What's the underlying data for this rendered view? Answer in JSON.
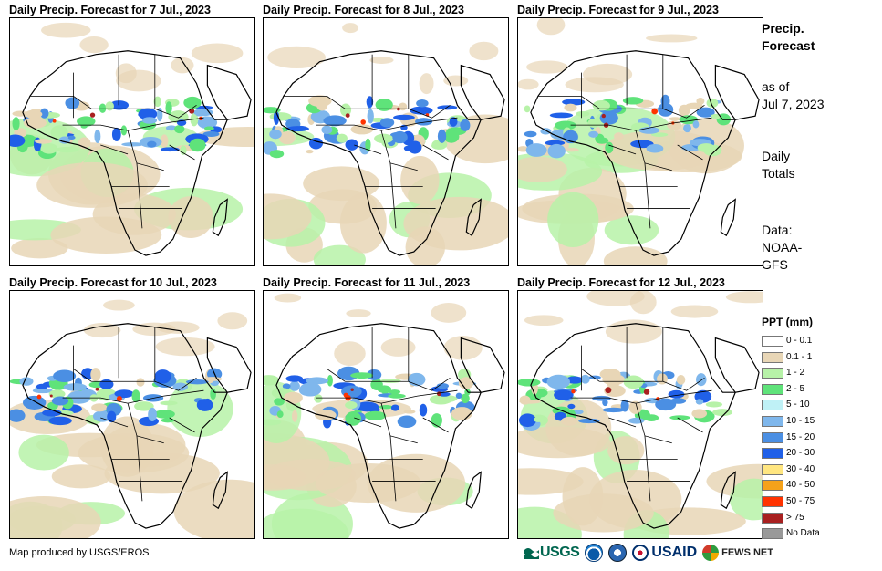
{
  "panels": [
    {
      "title": "Daily Precip. Forecast for 7 Jul., 2023"
    },
    {
      "title": "Daily Precip. Forecast for 8 Jul., 2023"
    },
    {
      "title": "Daily Precip. Forecast for 9 Jul., 2023"
    },
    {
      "title": "Daily Precip. Forecast for 10 Jul., 2023"
    },
    {
      "title": "Daily Precip. Forecast for 11 Jul., 2023"
    },
    {
      "title": "Daily Precip. Forecast for 12 Jul., 2023"
    }
  ],
  "sidebar": {
    "title_line1": "Precip.",
    "title_line2": "Forecast",
    "asof_line1": "as of",
    "asof_line2": "Jul 7, 2023",
    "daily_line1": "Daily",
    "daily_line2": "Totals",
    "data_line1": "Data:",
    "data_line2": "NOAA-",
    "data_line3": "GFS"
  },
  "legend": {
    "title": "PPT (mm)",
    "items": [
      {
        "label": "0 - 0.1",
        "color": "#ffffff"
      },
      {
        "label": "0.1 - 1",
        "color": "#e8d6b6"
      },
      {
        "label": "1 - 2",
        "color": "#b7f2a8"
      },
      {
        "label": "2 - 5",
        "color": "#5fe37a"
      },
      {
        "label": "5 - 10",
        "color": "#bff1f6"
      },
      {
        "label": "10 - 15",
        "color": "#7fb7ec"
      },
      {
        "label": "15 - 20",
        "color": "#4b8fe3"
      },
      {
        "label": "20 - 30",
        "color": "#2060e8"
      },
      {
        "label": "30 - 40",
        "color": "#ffe680"
      },
      {
        "label": "40 - 50",
        "color": "#f5a21b"
      },
      {
        "label": "50 - 75",
        "color": "#ff3300"
      },
      {
        "label": "> 75",
        "color": "#a82020"
      },
      {
        "label": "No Data",
        "color": "#999999"
      }
    ]
  },
  "footer": {
    "credit": "Map produced by USGS/EROS",
    "logo_usgs": "USGS",
    "logo_usaid": "USAID",
    "logo_fews": "FEWS NET"
  }
}
